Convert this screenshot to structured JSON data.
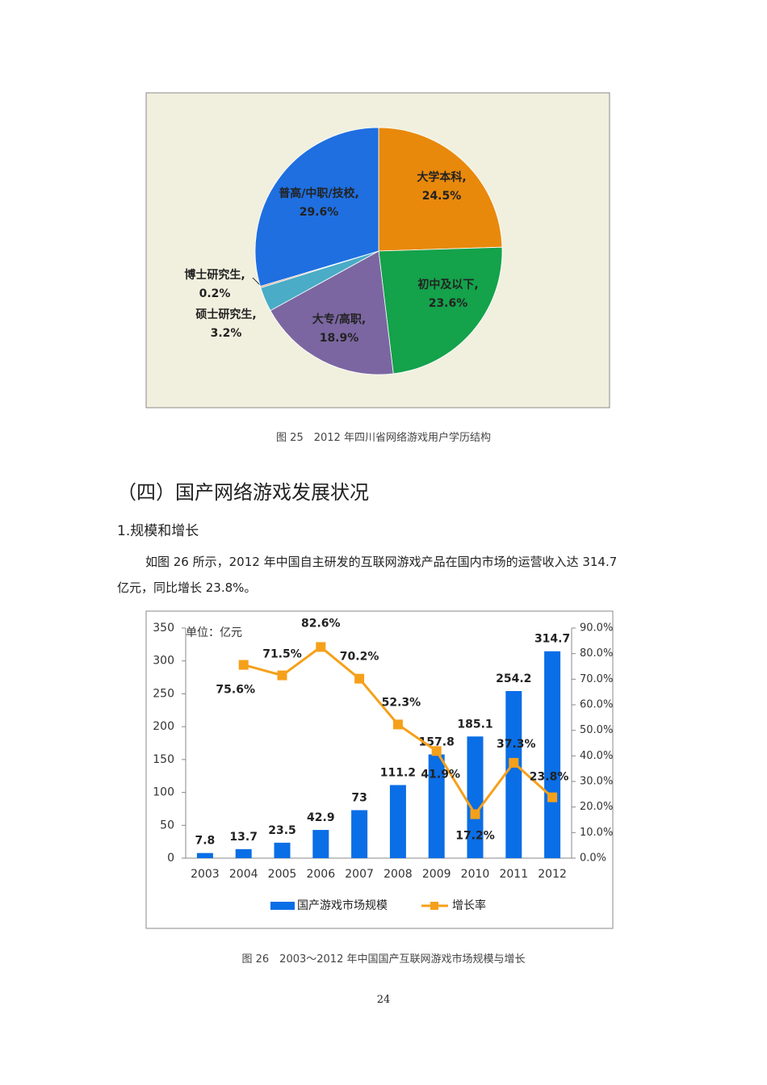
{
  "document": {
    "figure_25_caption": "图 25　2012 年四川省网络游戏用户学历结构",
    "heading": "（四）国产网络游戏发展状况",
    "subheading": "1.规模和增长",
    "paragraph": [
      "如图 26 所示，2012 年中国自主研发的互联网游戏产品在国内市场的运营收入达 314.7",
      "亿元，同比增长 23.8%。"
    ],
    "figure_26_caption": "图 26　2003～2012 年中国国产互联网游戏市场规模与增长",
    "page_number": "24"
  },
  "chart_data": [
    {
      "type": "pie",
      "categories": [
        "大学本科,",
        "初中及以下,",
        "大专/高职,",
        "硕士研究生,",
        "博士研究生,",
        "普高/中职/技校,"
      ],
      "values": [
        24.5,
        23.6,
        18.9,
        3.2,
        0.2,
        29.6
      ],
      "value_labels": [
        "24.5%",
        "23.6%",
        "18.9%",
        "3.2%",
        "0.2%",
        "29.6%"
      ],
      "colors": [
        "#e8890c",
        "#14a24b",
        "#7b66a1",
        "#4aacc6",
        "#d9a07a",
        "#1f6fe0"
      ]
    },
    {
      "type": "bar_line",
      "annotation": "单位：亿元",
      "categories": [
        "2003",
        "2004",
        "2005",
        "2006",
        "2007",
        "2008",
        "2009",
        "2010",
        "2011",
        "2012"
      ],
      "series": [
        {
          "name": "国产游戏市场规模",
          "type": "bar",
          "color": "#0a6ee6",
          "values": [
            7.8,
            13.7,
            23.5,
            42.9,
            73,
            111.2,
            157.8,
            185.1,
            254.2,
            314.7
          ]
        },
        {
          "name": "增长率",
          "type": "line",
          "axis": "y2",
          "color": "#f5a01a",
          "values": [
            null,
            75.6,
            71.5,
            82.6,
            70.2,
            52.3,
            41.9,
            17.2,
            37.3,
            23.8
          ],
          "value_labels": [
            null,
            "75.6%",
            "71.5%",
            "82.6%",
            "70.2%",
            "52.3%",
            "41.9%",
            "17.2%",
            "37.3%",
            "23.8%"
          ]
        }
      ],
      "ylim": [
        0,
        350
      ],
      "yticks": [
        0,
        50,
        100,
        150,
        200,
        250,
        300,
        350
      ],
      "y2lim": [
        0,
        90
      ],
      "y2ticks": [
        {
          "value": 0,
          "label": "0.0%"
        },
        {
          "value": 10,
          "label": "10.0%"
        },
        {
          "value": 20,
          "label": "20.0%"
        },
        {
          "value": 30,
          "label": "30.0%"
        },
        {
          "value": 40,
          "label": "40.0%"
        },
        {
          "value": 50,
          "label": "50.0%"
        },
        {
          "value": 60,
          "label": "60.0%"
        },
        {
          "value": 70,
          "label": "70.0%"
        },
        {
          "value": 80,
          "label": "80.0%"
        },
        {
          "value": 90,
          "label": "90.0%"
        }
      ],
      "grid": false,
      "legend": "bottom"
    }
  ]
}
